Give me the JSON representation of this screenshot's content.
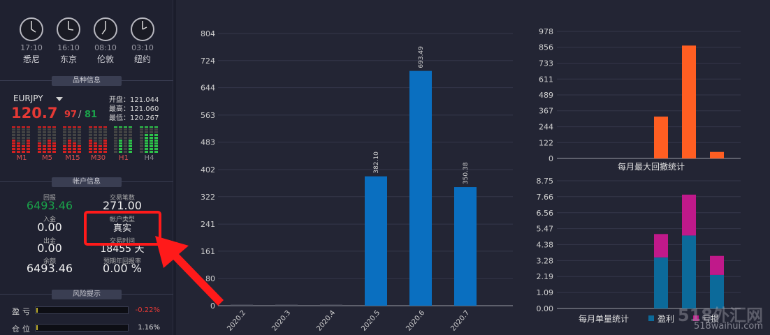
{
  "clocks": [
    {
      "time": "17:10",
      "city": "悉尼"
    },
    {
      "time": "16:10",
      "city": "东京"
    },
    {
      "time": "08:10",
      "city": "伦敦"
    },
    {
      "time": "03:10",
      "city": "纽约"
    }
  ],
  "symbol_section": {
    "title": "品种信息",
    "symbol": "EURJPY",
    "price_main": "120.7",
    "price_bid": "97",
    "price_sep": "/",
    "price_ask": "81",
    "open": "开盘：121.044",
    "high": "最高：121.060",
    "low": "最低：120.267",
    "timeframes": [
      "M1",
      "M5",
      "M15",
      "M30",
      "H1",
      "H4"
    ]
  },
  "account": {
    "title": "帐户信息",
    "profit_label": "回报",
    "profit_value": "6493.46",
    "trades_label": "交易笔数",
    "trades_value": "271.00",
    "deposit_label": "入金",
    "deposit_value": "0.00",
    "type_label": "帐户类型",
    "type_value": "真实",
    "withdraw_label": "出金",
    "withdraw_value": "0.00",
    "duration_label": "交易时间",
    "duration_value": "18455 天",
    "balance_label": "余额",
    "balance_value": "6493.46",
    "annual_label": "预期年回报率",
    "annual_value": "0.00 %"
  },
  "risk": {
    "title": "风险提示",
    "profit_label": "盈亏",
    "profit_value": "-0.22%",
    "position_label": "仓位",
    "position_value": "1.16%"
  },
  "colors": {
    "red": "#e53935",
    "green": "#1aa34a",
    "blue": "#0a6fc0",
    "orange": "#ff5e22",
    "magenta": "#c0198a",
    "steel": "#0c6a9a"
  },
  "watermark": {
    "big": "518外汇网",
    "small": "518waihui.com"
  },
  "chart_data": [
    {
      "type": "bar",
      "title": "",
      "categories": [
        "2020.2",
        "2020.3",
        "2020.4",
        "2020.5",
        "2020.6",
        "2020.7"
      ],
      "values": [
        3,
        3,
        3,
        382.1,
        693.49,
        350.38
      ],
      "data_labels": [
        "",
        "",
        "",
        "382.10",
        "693.49",
        "350.38"
      ],
      "yticks": [
        "0",
        "80",
        "161",
        "241",
        "322",
        "402",
        "483",
        "563",
        "644",
        "724",
        "804"
      ],
      "ylim": [
        0,
        804
      ]
    },
    {
      "type": "bar",
      "title": "每月最大回撤统计",
      "values": [
        0,
        0,
        0,
        322,
        869,
        50
      ],
      "yticks": [
        "0",
        "122",
        "244",
        "367",
        "489",
        "611",
        "733",
        "856",
        "978"
      ],
      "ylim": [
        0,
        978
      ]
    },
    {
      "type": "bar",
      "stacked": true,
      "title": "每月单量统计",
      "series": [
        {
          "name": "盈利",
          "values": [
            0,
            0,
            0,
            3.5,
            5.0,
            2.3
          ]
        },
        {
          "name": "亏损",
          "values": [
            0,
            0,
            0,
            1.6,
            2.8,
            1.3
          ]
        }
      ],
      "yticks": [
        "0.00",
        "1.09",
        "2.19",
        "3.28",
        "4.38",
        "5.47",
        "6.56",
        "7.66",
        "8.75"
      ],
      "ylim": [
        0,
        8.75
      ]
    }
  ]
}
